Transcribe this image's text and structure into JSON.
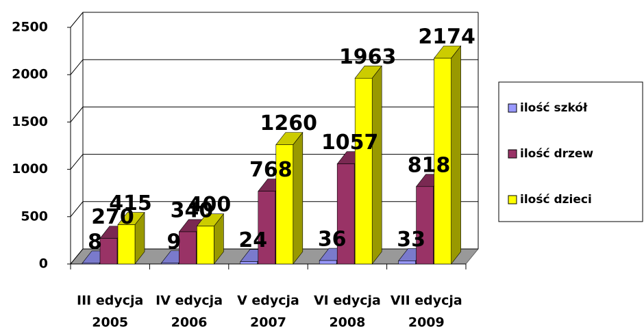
{
  "chart_data": {
    "type": "bar3d",
    "categories": [
      [
        "III edycja",
        "2005"
      ],
      [
        "IV edycja",
        "2006"
      ],
      [
        "V edycja",
        "2007"
      ],
      [
        "VI edycja",
        "2008"
      ],
      [
        "VII edycja",
        "2009"
      ]
    ],
    "series": [
      {
        "name": "ilość szkół",
        "color": "#9999ff",
        "values": [
          8,
          9,
          24,
          36,
          33
        ]
      },
      {
        "name": "ilość drzew",
        "color": "#993366",
        "values": [
          270,
          340,
          768,
          1057,
          818
        ]
      },
      {
        "name": "ilość dzieci",
        "color": "#ffff00",
        "values": [
          415,
          400,
          1260,
          1963,
          2174
        ]
      }
    ],
    "ylim": [
      0,
      2500
    ],
    "yticks": [
      0,
      500,
      1000,
      1500,
      2000,
      2500
    ],
    "grid": true,
    "legend": "right"
  }
}
